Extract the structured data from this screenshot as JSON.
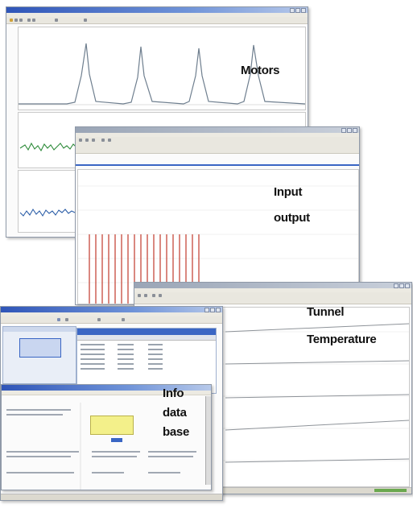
{
  "labels": {
    "motors": "Motors",
    "input": "Input",
    "output": "output",
    "tunnel": "Tunnel",
    "temperature": "Temperature",
    "info": "Info",
    "data": "data",
    "base": "base"
  },
  "colors": {
    "titlebar": "#2f55b8",
    "motor_trace": "#6f7f8f",
    "noise_trace": "#2e8b3a",
    "io_bars": "#c0392b",
    "highlight_cell": "#f3f08a",
    "selection": "#3a66c4"
  },
  "icons": [
    "minimize-icon",
    "maximize-icon",
    "close-icon",
    "toolbar-icon"
  ]
}
